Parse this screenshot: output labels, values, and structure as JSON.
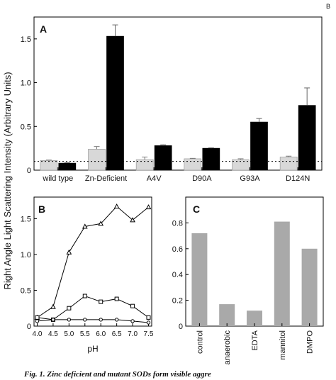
{
  "figure": {
    "page_marker": "B",
    "shared_ylabel": "Right Angle Light Scattering Intensity (Arbitrary Units)",
    "caption": "Fig. 1. Zinc deficient and mutant SODs form visible aggre"
  },
  "chart_data": [
    {
      "panel": "A",
      "type": "bar",
      "categories": [
        "wild type",
        "Zn-Deficient",
        "A4V",
        "D90A",
        "G93A",
        "D124N"
      ],
      "series": [
        {
          "values": [
            0.11,
            0.24,
            0.12,
            0.13,
            0.12,
            0.15
          ],
          "errors": [
            0.005,
            0.03,
            0.03,
            0.005,
            0.01,
            0.01
          ],
          "color": "#d8d8d8"
        },
        {
          "values": [
            0.08,
            1.53,
            0.28,
            0.25,
            0.55,
            0.74
          ],
          "errors": [
            0.005,
            0.13,
            0.01,
            0.005,
            0.04,
            0.2
          ],
          "color": "#000000"
        }
      ],
      "reference_line": 0.1,
      "ylim": [
        0,
        1.75
      ],
      "yticks": [
        "0",
        "0.5",
        "1.0",
        "1.5"
      ],
      "ytick_values": [
        0,
        0.5,
        1.0,
        1.5
      ]
    },
    {
      "panel": "B",
      "type": "line",
      "xlabel": "pH",
      "x": [
        4.0,
        4.5,
        5.0,
        5.5,
        6.0,
        6.5,
        7.0,
        7.5
      ],
      "xticks": [
        "4.0",
        "4.5",
        "5.0",
        "5.5",
        "6.0",
        "6.5",
        "7.0",
        "7.5"
      ],
      "series": [
        {
          "marker": "triangle",
          "values": [
            0.12,
            0.27,
            1.03,
            1.39,
            1.43,
            1.67,
            1.48,
            1.66
          ]
        },
        {
          "marker": "square",
          "values": [
            0.12,
            0.09,
            0.25,
            0.42,
            0.34,
            0.38,
            0.28,
            0.12
          ]
        },
        {
          "marker": "circle",
          "values": [
            0.07,
            0.09,
            0.09,
            0.09,
            0.09,
            0.09,
            0.07,
            0.05
          ]
        }
      ],
      "xlim": [
        3.9,
        7.6
      ],
      "ylim": [
        0,
        1.8
      ],
      "yticks": [
        "0",
        "0.5",
        "1.0",
        "1.5"
      ],
      "ytick_values": [
        0,
        0.5,
        1.0,
        1.5
      ]
    },
    {
      "panel": "C",
      "type": "bar",
      "categories": [
        "control",
        "anaerobic",
        "EDTA",
        "mannitol",
        "DMPO"
      ],
      "values": [
        0.72,
        0.17,
        0.12,
        0.81,
        0.6
      ],
      "color": "#a9a9a9",
      "ylim": [
        0,
        1.0
      ],
      "yticks": [
        "0",
        "0.2",
        "0.4",
        "0.6",
        "0.8"
      ],
      "ytick_values": [
        0,
        0.2,
        0.4,
        0.6,
        0.8
      ]
    }
  ]
}
